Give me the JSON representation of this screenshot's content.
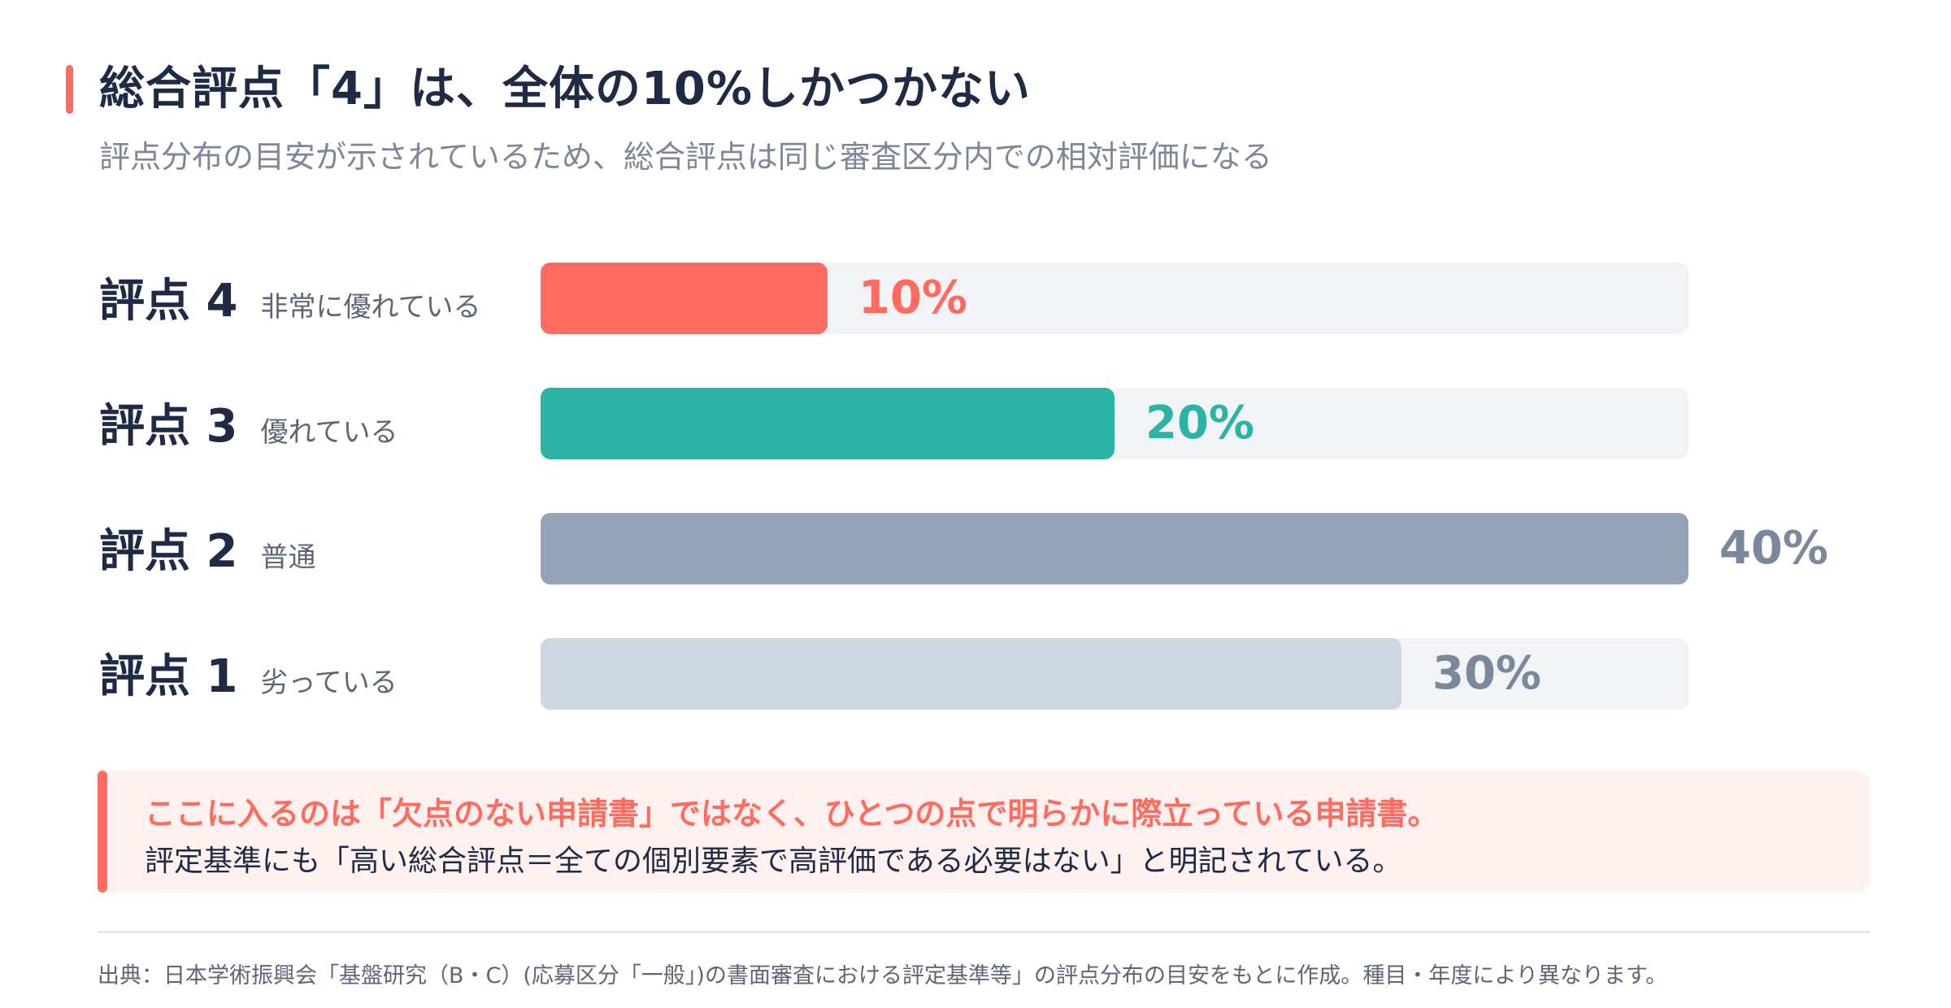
{
  "title": "総合評点「4」は、全体の10%しかつかない",
  "subtitle": "評点分布の目安が示されているため、総合評点は同じ審査区分内での相対評価になる",
  "chart_data": {
    "type": "bar",
    "orientation": "horizontal",
    "max_value": 40,
    "categories": [
      {
        "label": "評点 4",
        "desc": "非常に優れている"
      },
      {
        "label": "評点 3",
        "desc": "優れている"
      },
      {
        "label": "評点 2",
        "desc": "普通"
      },
      {
        "label": "評点 1",
        "desc": "劣っている"
      }
    ],
    "values": [
      10,
      20,
      40,
      30
    ],
    "value_labels": [
      "10%",
      "20%",
      "40%",
      "30%"
    ],
    "colors": [
      "#ff6b5f",
      "#2bb3a6",
      "#95a3b8",
      "#cdd6e1"
    ],
    "label_colors": [
      "#ff6b5f",
      "#2bb3a6",
      "#7b879a",
      "#7b879a"
    ]
  },
  "callout": {
    "lead": "ここに入るのは「欠点のない申請書」ではなく、ひとつの点で明らかに際立っている申請書。",
    "body": "評定基準にも「高い総合評点＝全ての個別要素で高評価である必要はない」と明記されている。"
  },
  "source": "出典：日本学術振興会「基盤研究（B・C）(応募区分「一般」)の書面審査における評定基準等」の評点分布の目安をもとに作成。種目・年度により異なります。"
}
